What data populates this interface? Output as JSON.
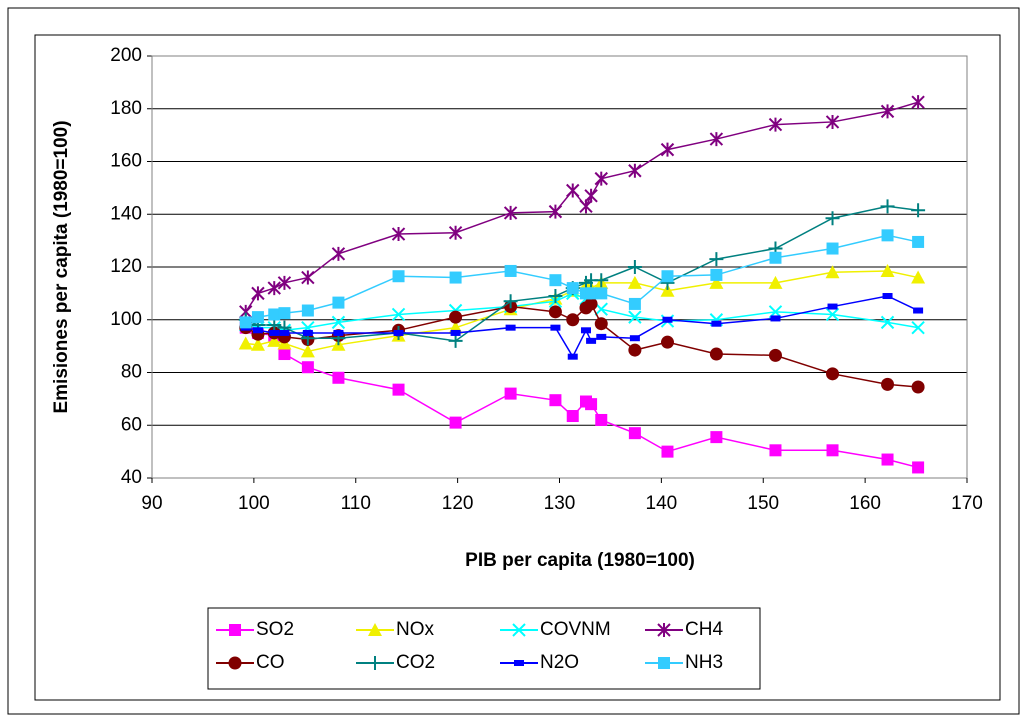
{
  "chart_data": {
    "type": "line",
    "x_label": "PIB per capita (1980=100)",
    "y_label": "Emisiones per capita (1980=100)",
    "x": [
      99.2,
      100.4,
      102.0,
      103.0,
      105.3,
      108.3,
      114.2,
      119.8,
      125.2,
      129.6,
      131.3,
      132.6,
      133.1,
      134.1,
      137.4,
      140.6,
      145.4,
      151.2,
      156.8,
      162.2,
      165.2
    ],
    "xlim": [
      90,
      170
    ],
    "xticks": [
      90,
      100,
      110,
      120,
      130,
      140,
      150,
      160,
      170
    ],
    "ylim": [
      40,
      200
    ],
    "yticks": [
      40,
      60,
      80,
      100,
      120,
      140,
      160,
      180,
      200
    ],
    "grid": true,
    "series": [
      {
        "name": "SO2",
        "color": "#ff00ff",
        "marker": "square",
        "values": [
          97,
          95,
          94,
          87,
          82,
          78,
          73.5,
          61,
          72,
          69.5,
          63.5,
          69,
          68,
          62,
          57,
          50,
          55.5,
          50.5,
          50.5,
          47,
          44
        ]
      },
      {
        "name": "NOx",
        "color": "#f0f000",
        "marker": "triangle",
        "values": [
          91,
          90.5,
          92,
          91,
          88,
          90.5,
          94,
          97,
          104,
          108,
          111,
          113,
          112,
          114,
          114,
          111,
          114,
          114,
          118,
          118.5,
          116
        ]
      },
      {
        "name": "COVNM",
        "color": "#00ffff",
        "marker": "cross",
        "values": [
          98,
          97,
          97,
          96,
          97,
          99,
          102,
          103.5,
          105,
          107,
          110,
          108,
          108,
          104,
          101,
          99.5,
          100,
          103,
          102,
          99,
          97
        ]
      },
      {
        "name": "CH4",
        "color": "#800080",
        "marker": "star",
        "values": [
          103,
          110,
          112,
          114,
          116,
          125,
          132.5,
          133,
          140.5,
          141,
          149,
          143,
          147,
          153.5,
          156.5,
          164.5,
          168.5,
          174,
          175,
          179,
          182.5
        ]
      },
      {
        "name": "CO",
        "color": "#800000",
        "marker": "circle",
        "values": [
          97,
          94.5,
          95,
          93.5,
          92.5,
          94,
          96,
          101,
          105,
          103,
          100,
          104.5,
          106,
          98.5,
          88.5,
          91.5,
          87,
          86.5,
          79.5,
          75.5,
          74.5
        ]
      },
      {
        "name": "CO2",
        "color": "#008080",
        "marker": "plus",
        "values": [
          100,
          98,
          98,
          97,
          93,
          93,
          95,
          92,
          107,
          109,
          112,
          114,
          115,
          115,
          120,
          114,
          123,
          127,
          138.5,
          143,
          141.5
        ]
      },
      {
        "name": "N2O",
        "color": "#0000ff",
        "marker": "dash",
        "values": [
          97,
          96,
          95,
          95,
          95,
          95,
          95,
          95,
          97,
          97,
          86,
          96,
          92,
          93.5,
          93,
          100,
          98.5,
          100.5,
          105,
          109,
          103.5
        ]
      },
      {
        "name": "NH3",
        "color": "#33ccff",
        "marker": "square",
        "values": [
          99,
          101,
          102,
          102.5,
          103.5,
          106.5,
          116.5,
          116,
          118.5,
          115,
          112,
          110,
          110,
          110,
          106,
          116.5,
          117,
          123.5,
          127,
          132,
          129.5
        ]
      }
    ]
  }
}
